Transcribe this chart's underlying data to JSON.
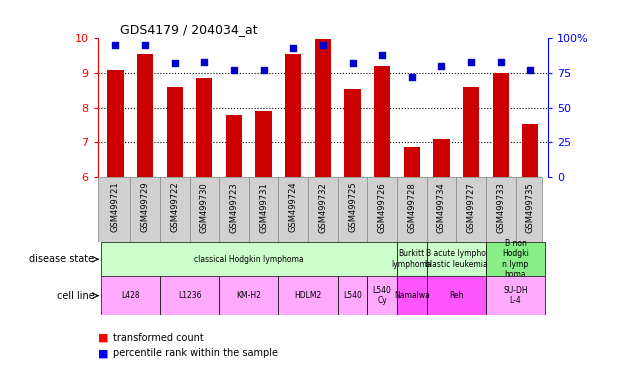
{
  "title": "GDS4179 / 204034_at",
  "samples": [
    "GSM499721",
    "GSM499729",
    "GSM499722",
    "GSM499730",
    "GSM499723",
    "GSM499731",
    "GSM499724",
    "GSM499732",
    "GSM499725",
    "GSM499726",
    "GSM499728",
    "GSM499734",
    "GSM499727",
    "GSM499733",
    "GSM499735"
  ],
  "bar_values": [
    9.1,
    9.55,
    8.6,
    8.85,
    7.78,
    7.9,
    9.55,
    9.98,
    8.55,
    9.2,
    6.85,
    7.08,
    8.6,
    9.0,
    7.52
  ],
  "dot_values": [
    95,
    95,
    82,
    83,
    77,
    77,
    93,
    95,
    82,
    88,
    72,
    80,
    83,
    83,
    77
  ],
  "ylim_left": [
    6,
    10
  ],
  "ylim_right": [
    0,
    100
  ],
  "yticks_left": [
    6,
    7,
    8,
    9,
    10
  ],
  "yticks_right": [
    0,
    25,
    50,
    75,
    100
  ],
  "bar_color": "#cc0000",
  "dot_color": "#0000cc",
  "xticklabel_bg": "#d0d0d0",
  "ds_groups": [
    {
      "label": "classical Hodgkin lymphoma",
      "start": 0,
      "end": 10,
      "color": "#ccffcc"
    },
    {
      "label": "Burkitt\nlymphoma",
      "start": 10,
      "end": 11,
      "color": "#ccffcc"
    },
    {
      "label": "B acute lympho\nblastic leukemia",
      "start": 11,
      "end": 13,
      "color": "#ccffcc"
    },
    {
      "label": "B non\nHodgki\nn lymp\nhoma",
      "start": 13,
      "end": 15,
      "color": "#88ee88"
    }
  ],
  "cl_groups": [
    {
      "label": "L428",
      "start": 0,
      "end": 2,
      "color": "#ffaaff"
    },
    {
      "label": "L1236",
      "start": 2,
      "end": 4,
      "color": "#ffaaff"
    },
    {
      "label": "KM-H2",
      "start": 4,
      "end": 6,
      "color": "#ffaaff"
    },
    {
      "label": "HDLM2",
      "start": 6,
      "end": 8,
      "color": "#ffaaff"
    },
    {
      "label": "L540",
      "start": 8,
      "end": 9,
      "color": "#ffaaff"
    },
    {
      "label": "L540\nCy",
      "start": 9,
      "end": 10,
      "color": "#ffaaff"
    },
    {
      "label": "Namalwa",
      "start": 10,
      "end": 11,
      "color": "#ff55ff"
    },
    {
      "label": "Reh",
      "start": 11,
      "end": 13,
      "color": "#ff55ff"
    },
    {
      "label": "SU-DH\nL-4",
      "start": 13,
      "end": 15,
      "color": "#ffaaff"
    }
  ]
}
